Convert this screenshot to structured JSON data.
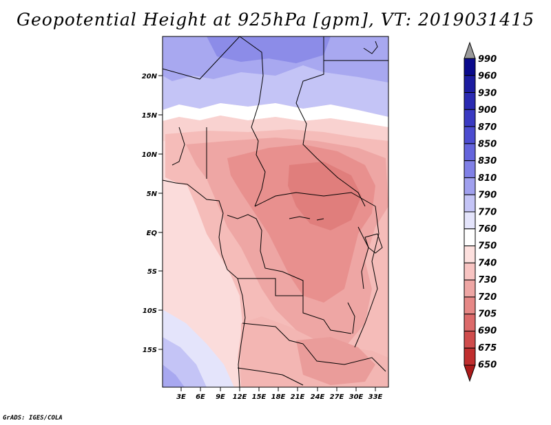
{
  "title": "Geopotential Height at 925hPa [gpm], VT: 2019031415",
  "credit": "GrADS: IGES/COLA",
  "map": {
    "lat_labels": [
      "20N",
      "15N",
      "10N",
      "5N",
      "EQ",
      "5S",
      "10S",
      "15S"
    ],
    "lon_labels": [
      "3E",
      "6E",
      "9E",
      "12E",
      "15E",
      "18E",
      "21E",
      "24E",
      "27E",
      "30E",
      "33E"
    ]
  },
  "colorbar": {
    "levels": [
      "990",
      "960",
      "930",
      "900",
      "870",
      "850",
      "830",
      "810",
      "790",
      "770",
      "760",
      "750",
      "740",
      "730",
      "720",
      "705",
      "690",
      "675",
      "650"
    ],
    "colors": [
      "#9a9a9a",
      "#0a0a8c",
      "#1c1ca0",
      "#2a2ab2",
      "#3a3ac2",
      "#4c4cd0",
      "#6464dc",
      "#8080e6",
      "#a0a0ee",
      "#c4c4f6",
      "#e4e4fb",
      "#ffffff",
      "#fde0de",
      "#f8c4c2",
      "#eea6a4",
      "#e68886",
      "#dc6a6a",
      "#cf4c4c",
      "#c02e2e",
      "#ac1a1a"
    ]
  },
  "colors": {
    "ocean_pink": "#fbdcdb",
    "land_light": "#f7c3c1",
    "land_mid": "#eea6a4",
    "land_dark": "#e48583",
    "sahara_blue": "#c4c4f6",
    "deep_blue": "#9a9aec",
    "white_band": "#ffffff"
  }
}
